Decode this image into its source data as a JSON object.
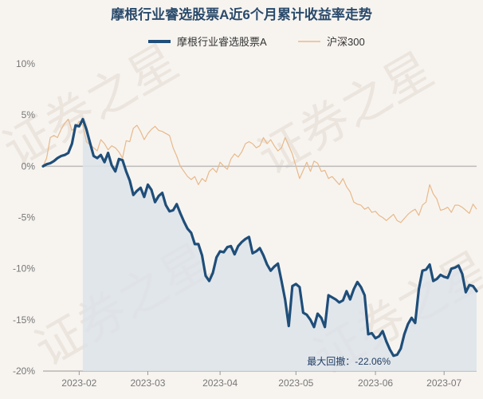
{
  "chart_data": {
    "type": "line",
    "title": "摩根行业睿选股票A近6个月累计收益率走势",
    "watermark": "证券之星",
    "ylim": [
      -20,
      10
    ],
    "yticks": [
      10,
      5,
      0,
      -5,
      -10,
      -15,
      -20
    ],
    "ytick_labels": [
      "10%",
      "5%",
      "0%",
      "-5%",
      "-10%",
      "-15%",
      "-20%"
    ],
    "xtick_labels": [
      "2023-02",
      "2023-03",
      "2023-04",
      "2023-05",
      "2023-06",
      "2023-07"
    ],
    "n_points": 121,
    "xtick_positions": [
      10,
      29,
      49,
      70,
      92,
      111
    ],
    "grid": "horizontal",
    "legend_position": "top-center",
    "colors": {
      "fund": "#1f4e79",
      "index": "#e8b98a",
      "drawdown_fill": "#dde3ea",
      "zero_line": "#bbbbbb"
    },
    "series": [
      {
        "name": "摩根行业睿选股票A",
        "values": [
          0.0,
          0.2,
          0.3,
          0.5,
          0.8,
          1.0,
          1.1,
          1.3,
          2.2,
          4.0,
          3.9,
          4.6,
          3.6,
          2.3,
          1.0,
          0.8,
          1.1,
          0.4,
          1.3,
          0.1,
          -0.5,
          0.7,
          0.6,
          -0.5,
          -1.4,
          -2.8,
          -2.4,
          -2.1,
          -3.0,
          -1.8,
          -2.3,
          -3.5,
          -2.9,
          -2.6,
          -3.8,
          -4.4,
          -4.3,
          -3.7,
          -4.6,
          -5.4,
          -6.1,
          -6.5,
          -7.6,
          -7.6,
          -8.7,
          -10.7,
          -11.2,
          -10.4,
          -8.9,
          -8.3,
          -8.4,
          -7.9,
          -7.8,
          -8.6,
          -7.8,
          -7.4,
          -7.1,
          -6.9,
          -8.5,
          -8.3,
          -8.0,
          -8.7,
          -9.6,
          -10.2,
          -9.8,
          -9.5,
          -11.2,
          -13.0,
          -15.6,
          -11.7,
          -11.5,
          -11.8,
          -14.3,
          -14.5,
          -15.0,
          -15.7,
          -14.4,
          -14.8,
          -15.7,
          -12.6,
          -12.8,
          -13.0,
          -13.3,
          -13.1,
          -12.2,
          -13.0,
          -12.0,
          -11.3,
          -11.8,
          -12.6,
          -16.4,
          -16.3,
          -16.8,
          -16.6,
          -16.1,
          -17.1,
          -17.9,
          -18.5,
          -18.4,
          -17.8,
          -16.4,
          -15.4,
          -14.8,
          -15.3,
          -12.0,
          -10.2,
          -10.1,
          -9.6,
          -11.2,
          -11.0,
          -10.6,
          -10.8,
          -10.9,
          -10.0,
          -9.9,
          -9.7,
          -10.5,
          -12.3,
          -11.6,
          -11.7,
          -12.2
        ],
        "max_drawdown_label": "最大回撤：-22.06%"
      },
      {
        "name": "沪深300",
        "values": [
          0.0,
          0.8,
          2.8,
          3.0,
          2.8,
          3.6,
          4.2,
          4.6,
          3.5,
          3.8,
          4.4,
          4.0,
          2.4,
          2.1,
          1.8,
          1.5,
          2.6,
          2.2,
          1.6,
          2.0,
          1.8,
          1.4,
          0.8,
          2.5,
          2.4,
          3.7,
          4.0,
          3.4,
          2.6,
          3.2,
          3.6,
          3.9,
          3.5,
          3.4,
          3.2,
          3.0,
          1.8,
          1.0,
          0.0,
          -0.5,
          -1.0,
          -1.3,
          -1.0,
          -1.8,
          -1.2,
          -1.5,
          -0.5,
          -0.2,
          -0.6,
          0.4,
          0.0,
          -0.3,
          0.7,
          1.2,
          0.9,
          1.4,
          2.2,
          2.4,
          2.2,
          1.8,
          2.0,
          2.8,
          2.2,
          2.6,
          2.0,
          1.5,
          1.8,
          2.8,
          2.0,
          1.2,
          0.0,
          -1.2,
          -0.4,
          0.4,
          -0.5,
          0.5,
          0.3,
          -0.5,
          -0.4,
          -1.2,
          -1.0,
          -1.4,
          -1.8,
          -1.2,
          -2.0,
          -2.5,
          -3.5,
          -3.7,
          -3.8,
          -4.2,
          -4.0,
          -4.5,
          -4.4,
          -4.8,
          -5.0,
          -5.3,
          -5.0,
          -4.7,
          -5.3,
          -5.5,
          -5.1,
          -4.7,
          -4.4,
          -4.2,
          -4.8,
          -3.8,
          -3.5,
          -1.8,
          -2.7,
          -3.2,
          -4.3,
          -4.2,
          -4.0,
          -4.5,
          -3.8,
          -3.8,
          -4.0,
          -4.3,
          -4.6,
          -3.7,
          -4.2
        ]
      }
    ]
  }
}
